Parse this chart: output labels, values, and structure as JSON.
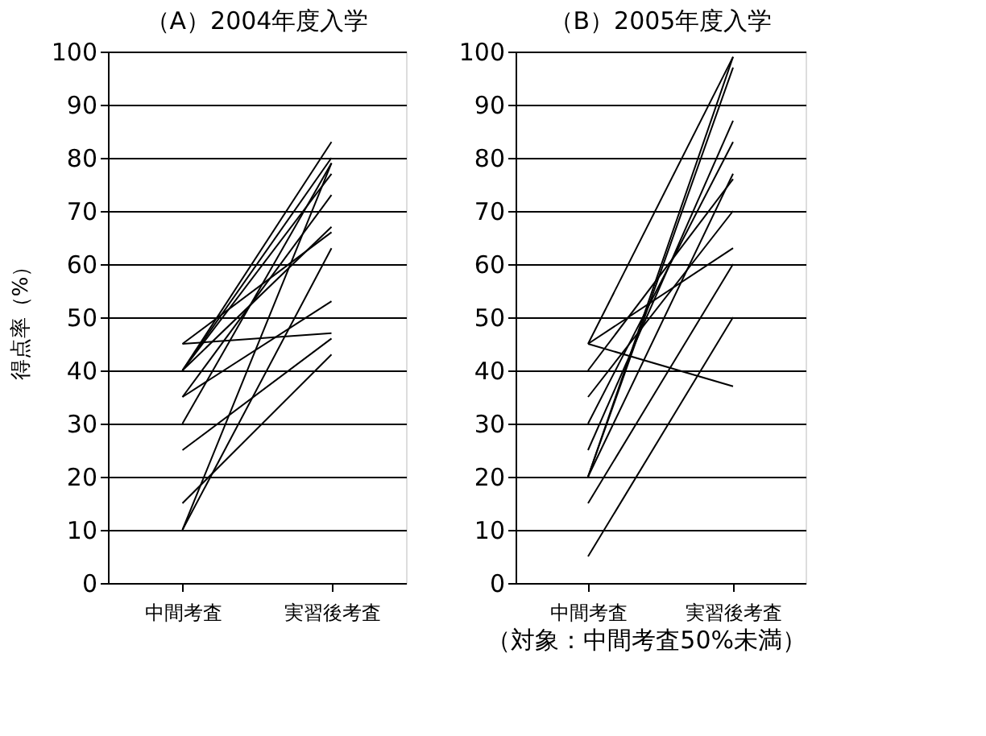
{
  "chart_data": [
    {
      "type": "line",
      "title": "（A）2004年度入学",
      "ylabel": "得点率（%）",
      "categories": [
        "中間考査",
        "実習後考査"
      ],
      "ylim": [
        0,
        100
      ],
      "yticks": [
        0,
        10,
        20,
        30,
        40,
        50,
        60,
        70,
        80,
        90,
        100
      ],
      "grid": "y",
      "legend": false,
      "marker": "none",
      "line_style": "solid",
      "series": [
        {
          "color": "#000000",
          "values": [
            45,
            47
          ]
        },
        {
          "color": "#000000",
          "values": [
            45,
            66
          ]
        },
        {
          "color": "#000000",
          "values": [
            40,
            83
          ]
        },
        {
          "color": "#000000",
          "values": [
            40,
            80
          ]
        },
        {
          "color": "#000000",
          "values": [
            40,
            77
          ]
        },
        {
          "color": "#000000",
          "values": [
            40,
            67
          ]
        },
        {
          "color": "#000000",
          "values": [
            35,
            73
          ]
        },
        {
          "color": "#000000",
          "values": [
            35,
            53
          ]
        },
        {
          "color": "#000000",
          "values": [
            30,
            79
          ]
        },
        {
          "color": "#000000",
          "values": [
            25,
            46
          ]
        },
        {
          "color": "#000000",
          "values": [
            15,
            43
          ]
        },
        {
          "color": "#000000",
          "values": [
            10,
            63
          ]
        },
        {
          "color": "#000000",
          "values": [
            10,
            79
          ]
        }
      ]
    },
    {
      "type": "line",
      "title": "（B）2005年度入学",
      "categories": [
        "中間考査",
        "実習後考査"
      ],
      "ylim": [
        0,
        100
      ],
      "yticks": [
        0,
        10,
        20,
        30,
        40,
        50,
        60,
        70,
        80,
        90,
        100
      ],
      "grid": "y",
      "legend": false,
      "marker": "none",
      "line_style": "solid",
      "annotations": [
        "（対象：中間考査50%未満）"
      ],
      "series": [
        {
          "color": "#000000",
          "values": [
            45,
            37
          ]
        },
        {
          "color": "#000000",
          "values": [
            45,
            63
          ]
        },
        {
          "color": "#000000",
          "values": [
            45,
            99
          ]
        },
        {
          "color": "#000000",
          "values": [
            40,
            76
          ]
        },
        {
          "color": "#000000",
          "values": [
            35,
            70
          ]
        },
        {
          "color": "#000000",
          "values": [
            30,
            83
          ]
        },
        {
          "color": "#000000",
          "values": [
            25,
            87
          ]
        },
        {
          "color": "#000000",
          "values": [
            20,
            97
          ]
        },
        {
          "color": "#000000",
          "values": [
            20,
            99
          ]
        },
        {
          "color": "#000000",
          "values": [
            20,
            77
          ]
        },
        {
          "color": "#000000",
          "values": [
            15,
            60
          ]
        },
        {
          "color": "#000000",
          "values": [
            5,
            50
          ]
        }
      ]
    }
  ]
}
